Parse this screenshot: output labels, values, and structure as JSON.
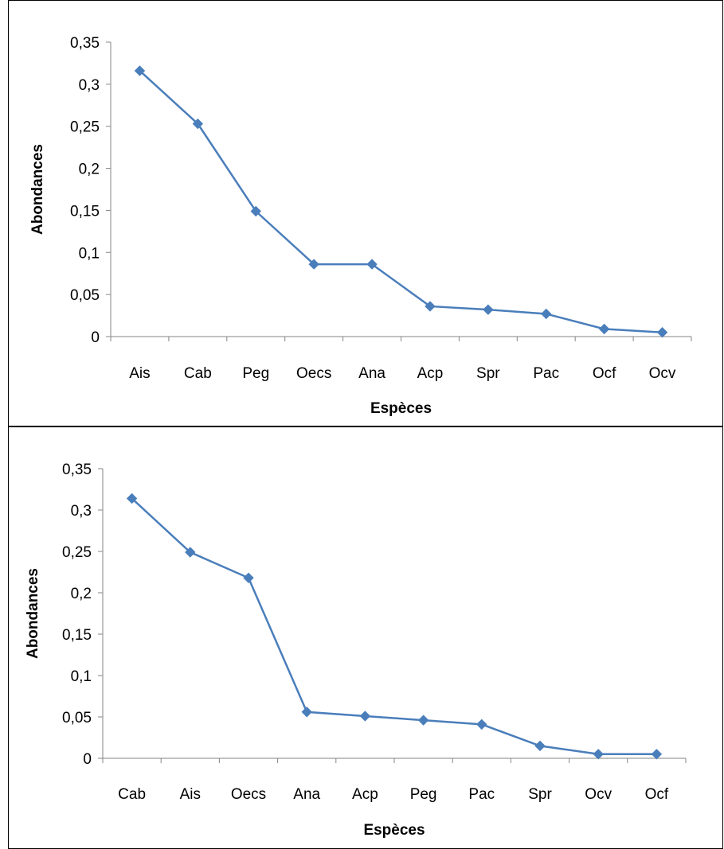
{
  "chart_data": [
    {
      "type": "line",
      "xlabel": "Espèces",
      "ylabel": "Abondances",
      "ylim": [
        0,
        0.35
      ],
      "yticks": [
        "0",
        "0,05",
        "0,1",
        "0,15",
        "0,2",
        "0,25",
        "0,3",
        "0,35"
      ],
      "categories": [
        "Ais",
        "Cab",
        "Peg",
        "Oecs",
        "Ana",
        "Acp",
        "Spr",
        "Pac",
        "Ocf",
        "Ocv"
      ],
      "series": [
        {
          "values": [
            0.316,
            0.253,
            0.149,
            0.086,
            0.086,
            0.036,
            0.032,
            0.027,
            0.009,
            0.005
          ]
        }
      ],
      "grid": false,
      "color": "#4A7EBB"
    },
    {
      "type": "line",
      "xlabel": "Espèces",
      "ylabel": "Abondances",
      "ylim": [
        0,
        0.35
      ],
      "yticks": [
        "0",
        "0,05",
        "0,1",
        "0,15",
        "0,2",
        "0,25",
        "0,3",
        "0,35"
      ],
      "categories": [
        "Cab",
        "Ais",
        "Oecs",
        "Ana",
        "Acp",
        "Peg",
        "Pac",
        "Spr",
        "Ocv",
        "Ocf"
      ],
      "series": [
        {
          "values": [
            0.314,
            0.249,
            0.218,
            0.056,
            0.051,
            0.046,
            0.041,
            0.015,
            0.005,
            0.005
          ]
        }
      ],
      "grid": false,
      "color": "#4A7EBB"
    }
  ]
}
